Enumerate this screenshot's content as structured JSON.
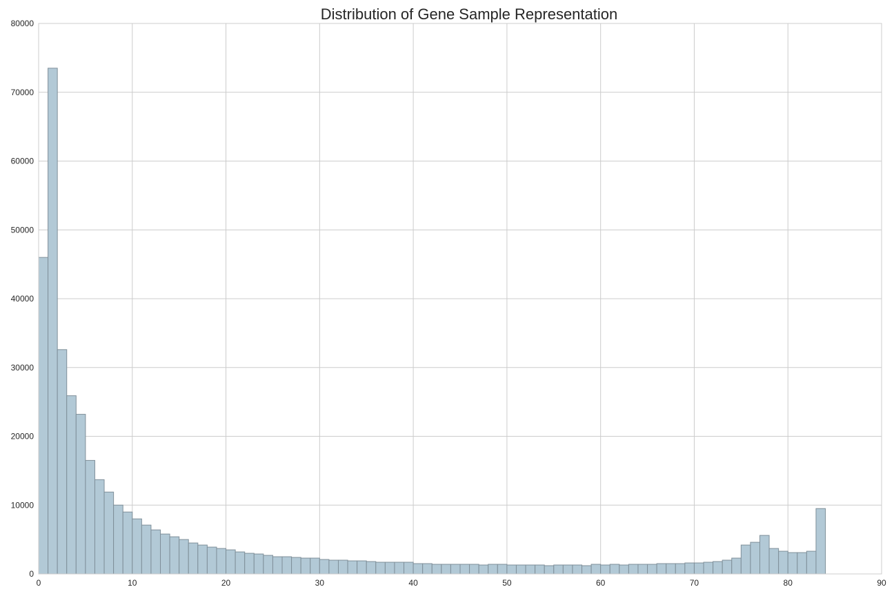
{
  "chart_data": {
    "type": "bar",
    "title": "Distribution of Gene Sample Representation",
    "xlabel": "",
    "ylabel": "",
    "xlim": [
      0,
      90
    ],
    "ylim": [
      0,
      80000
    ],
    "xticks": [
      0,
      10,
      20,
      30,
      40,
      50,
      60,
      70,
      80,
      90
    ],
    "yticks": [
      0,
      10000,
      20000,
      30000,
      40000,
      50000,
      60000,
      70000,
      80000
    ],
    "grid": true,
    "bar_color": "#b2c9d6",
    "bar_edge_color": "#7f8f99",
    "bin_width": 1,
    "bin_start": 0,
    "values": [
      46000,
      73500,
      32600,
      25900,
      23200,
      16500,
      13700,
      11900,
      10000,
      9000,
      8000,
      7100,
      6400,
      5800,
      5400,
      5000,
      4500,
      4200,
      3900,
      3700,
      3500,
      3200,
      3000,
      2900,
      2700,
      2500,
      2500,
      2400,
      2300,
      2300,
      2100,
      2000,
      2000,
      1900,
      1900,
      1800,
      1700,
      1700,
      1700,
      1700,
      1500,
      1500,
      1400,
      1400,
      1400,
      1400,
      1400,
      1300,
      1400,
      1400,
      1300,
      1300,
      1300,
      1300,
      1200,
      1300,
      1300,
      1300,
      1200,
      1400,
      1300,
      1400,
      1300,
      1400,
      1400,
      1400,
      1500,
      1500,
      1500,
      1600,
      1600,
      1700,
      1800,
      2000,
      2300,
      4200,
      4600,
      5600,
      3700,
      3300,
      3100,
      3100,
      3300,
      9500
    ]
  }
}
